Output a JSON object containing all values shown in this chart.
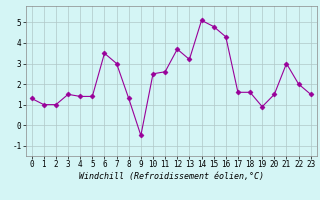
{
  "x": [
    0,
    1,
    2,
    3,
    4,
    5,
    6,
    7,
    8,
    9,
    10,
    11,
    12,
    13,
    14,
    15,
    16,
    17,
    18,
    19,
    20,
    21,
    22,
    23
  ],
  "y": [
    1.3,
    1.0,
    1.0,
    1.5,
    1.4,
    1.4,
    3.5,
    3.0,
    1.3,
    -0.5,
    2.5,
    2.6,
    3.7,
    3.2,
    5.1,
    4.8,
    4.3,
    1.6,
    1.6,
    0.9,
    1.5,
    3.0,
    2.0,
    1.5
  ],
  "line_color": "#990099",
  "marker": "D",
  "markersize": 2.5,
  "linewidth": 0.8,
  "xlabel": "Windchill (Refroidissement éolien,°C)",
  "xlabel_fontsize": 6,
  "bg_color": "#d4f5f5",
  "grid_color": "#b0c8c8",
  "ylim": [
    -1.5,
    5.8
  ],
  "xlim": [
    -0.5,
    23.5
  ],
  "yticks": [
    -1,
    0,
    1,
    2,
    3,
    4,
    5
  ],
  "xticks": [
    0,
    1,
    2,
    3,
    4,
    5,
    6,
    7,
    8,
    9,
    10,
    11,
    12,
    13,
    14,
    15,
    16,
    17,
    18,
    19,
    20,
    21,
    22,
    23
  ],
  "tick_fontsize": 5.5,
  "spine_color": "#888888"
}
